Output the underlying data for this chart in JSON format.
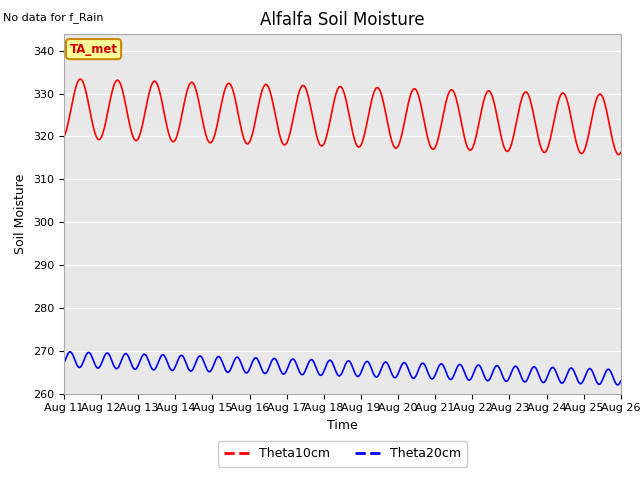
{
  "title": "Alfalfa Soil Moisture",
  "no_data_text": "No data for f_Rain",
  "ylabel": "Soil Moisture",
  "xlabel": "Time",
  "ylim": [
    260,
    344
  ],
  "yticks": [
    260,
    270,
    280,
    290,
    300,
    310,
    320,
    330,
    340
  ],
  "x_labels": [
    "Aug 11",
    "Aug 12",
    "Aug 13",
    "Aug 14",
    "Aug 15",
    "Aug 16",
    "Aug 17",
    "Aug 18",
    "Aug 19",
    "Aug 20",
    "Aug 21",
    "Aug 22",
    "Aug 23",
    "Aug 24",
    "Aug 25",
    "Aug 26"
  ],
  "theta10_color": "#ff0000",
  "theta20_color": "#0000ff",
  "bg_color": "#e8e8e8",
  "ta_met_label": "TA_met",
  "ta_met_bg": "#ffff99",
  "ta_met_border": "#cc8800",
  "ta_met_text_color": "#cc0000",
  "legend_label_10": "Theta10cm",
  "legend_label_20": "Theta20cm",
  "title_fontsize": 12,
  "tick_fontsize": 8,
  "ylabel_fontsize": 9,
  "xlabel_fontsize": 9
}
